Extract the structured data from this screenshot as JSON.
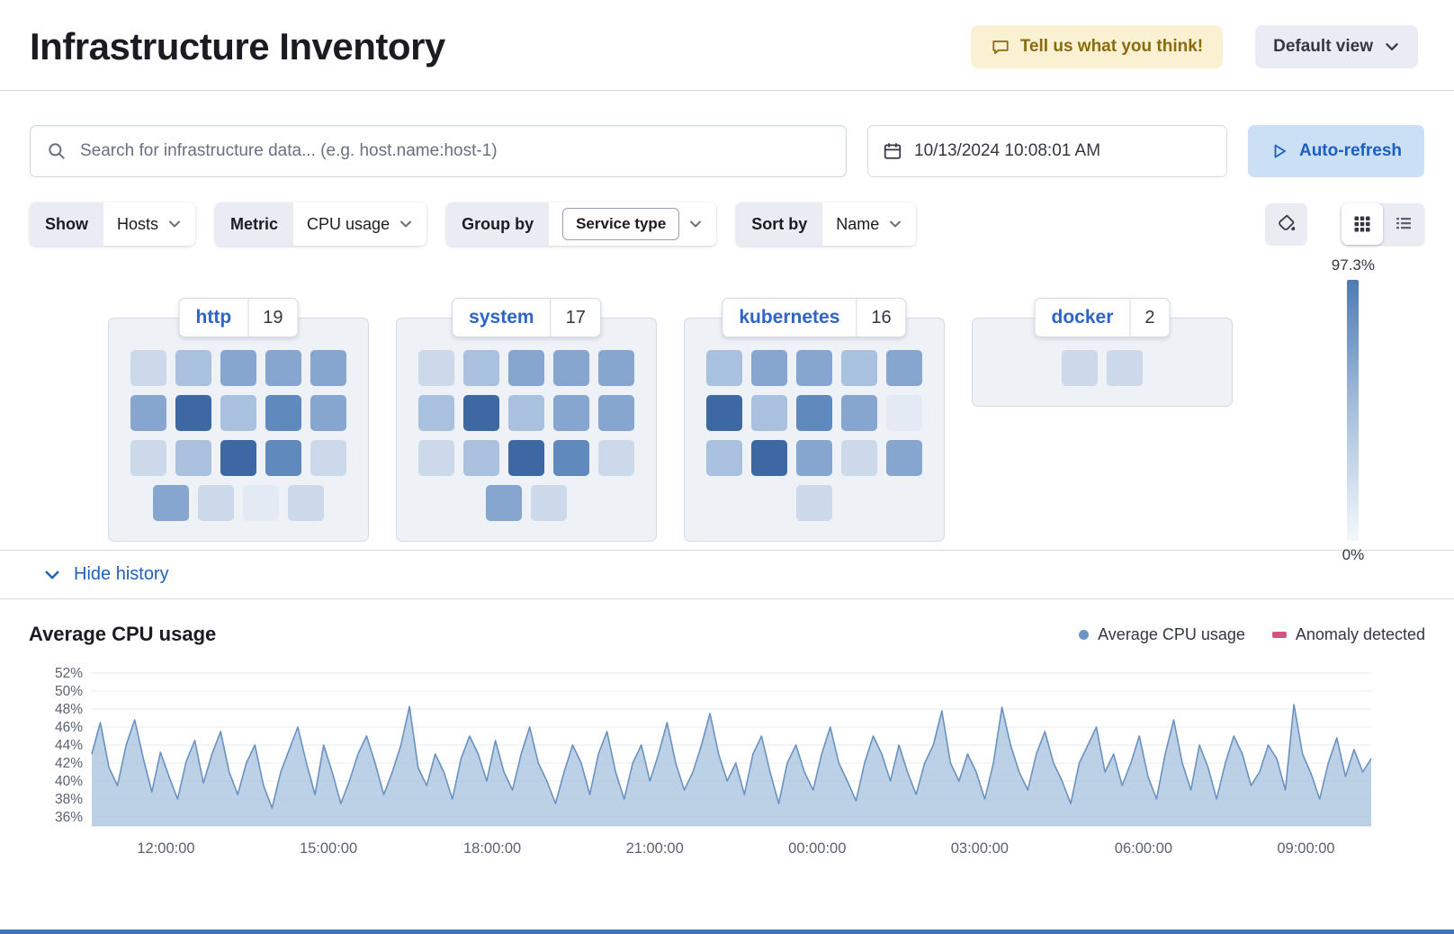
{
  "header": {
    "title": "Infrastructure Inventory",
    "feedback_button": "Tell us what you think!",
    "view_picker": "Default view"
  },
  "toolbar": {
    "search_placeholder": "Search for infrastructure data... (e.g. host.name:host-1)",
    "datetime": "10/13/2024 10:08:01 AM",
    "auto_refresh": "Auto-refresh"
  },
  "filters": {
    "show_label": "Show",
    "show_value": "Hosts",
    "metric_label": "Metric",
    "metric_value": "CPU usage",
    "group_by_label": "Group by",
    "group_by_value": "Service type",
    "sort_by_label": "Sort by",
    "sort_by_value": "Name"
  },
  "scale": {
    "max": "97.3%",
    "min": "0%",
    "top_color": "#4d7bb5",
    "mid_color": "#9fb9d8",
    "bottom_color": "#f4f8fc"
  },
  "palette": [
    "#e3eaf4",
    "#ccd9eb",
    "#a9c0de",
    "#86a6d0",
    "#6089be",
    "#3d68a3"
  ],
  "groups": [
    {
      "name": "http",
      "count": "19",
      "rows": [
        [
          1,
          2,
          3,
          3,
          3
        ],
        [
          3,
          5,
          2,
          4,
          3
        ],
        [
          1,
          2,
          5,
          4,
          1
        ],
        [
          3,
          1,
          0,
          1
        ]
      ]
    },
    {
      "name": "system",
      "count": "17",
      "rows": [
        [
          1,
          2,
          3,
          3,
          3
        ],
        [
          2,
          5,
          2,
          3,
          3
        ],
        [
          1,
          2,
          5,
          4,
          1
        ],
        [
          3,
          1
        ]
      ]
    },
    {
      "name": "kubernetes",
      "count": "16",
      "rows": [
        [
          2,
          3,
          3,
          2,
          3
        ],
        [
          5,
          2,
          4,
          3,
          0
        ],
        [
          2,
          5,
          3,
          1,
          3
        ],
        [
          1
        ]
      ]
    },
    {
      "name": "docker",
      "count": "2",
      "rows": [
        [
          1,
          1
        ]
      ]
    }
  ],
  "history": {
    "toggle": "Hide history"
  },
  "chart_data": {
    "type": "area",
    "title": "Average CPU usage",
    "legend": [
      {
        "label": "Average CPU usage",
        "shape": "dot",
        "color": "#6d95c3"
      },
      {
        "label": "Anomaly detected",
        "shape": "bar",
        "color": "#d4547a"
      }
    ],
    "series_color": "#6a92c1",
    "fill_color": "#b0c8e2",
    "ylim": [
      35,
      53
    ],
    "y_ticks": [
      52,
      50,
      48,
      46,
      44,
      42,
      40,
      38,
      36
    ],
    "y_tick_labels": [
      "52%",
      "50%",
      "48%",
      "46%",
      "44%",
      "42%",
      "40%",
      "38%",
      "36%"
    ],
    "x_tick_labels": [
      "12:00:00",
      "15:00:00",
      "18:00:00",
      "21:00:00",
      "00:00:00",
      "03:00:00",
      "06:00:00",
      "09:00:00"
    ],
    "series": [
      {
        "name": "Average CPU usage",
        "values": [
          43,
          46.5,
          41.5,
          39.5,
          44,
          46.8,
          42.5,
          38.8,
          43.2,
          40.5,
          38,
          42.2,
          44.5,
          39.8,
          43,
          45.5,
          41,
          38.5,
          42,
          44,
          39.5,
          37,
          41,
          43.5,
          46,
          42,
          38.5,
          44,
          41,
          37.5,
          40,
          43,
          45,
          42,
          38.5,
          41,
          44,
          48.3,
          41.5,
          39.5,
          43,
          41,
          38,
          42.5,
          45,
          43,
          40,
          44.5,
          41,
          39,
          43,
          46,
          42,
          40,
          37.5,
          41,
          44,
          42,
          38.5,
          43,
          45.5,
          41,
          38,
          42,
          44,
          40,
          43,
          46.5,
          42,
          39,
          41,
          44,
          47.5,
          43,
          40,
          42,
          38.5,
          43,
          45,
          41,
          37.5,
          42,
          44,
          41,
          39,
          43,
          46,
          42,
          40,
          37.8,
          42,
          45,
          43,
          40,
          44,
          41,
          38.5,
          42,
          44,
          47.8,
          42,
          40,
          43,
          41,
          38,
          42,
          48.2,
          44,
          41,
          39,
          43,
          45.5,
          42,
          40,
          37.5,
          42,
          44,
          46,
          41,
          43,
          39.5,
          42,
          45,
          40.5,
          38,
          43,
          46.8,
          42,
          39,
          44,
          41.5,
          38,
          42,
          45,
          43,
          39.5,
          41,
          44,
          42.5,
          39,
          48.5,
          43,
          40.8,
          38,
          42,
          44.8,
          40.5,
          43.5,
          41,
          42.5
        ]
      }
    ]
  }
}
